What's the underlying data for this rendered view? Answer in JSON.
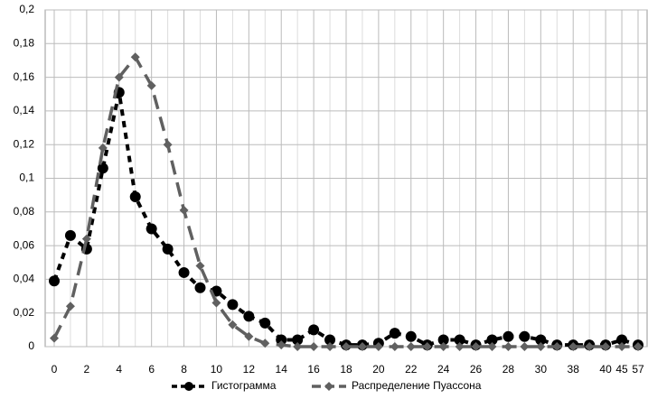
{
  "chart_data": {
    "type": "line",
    "categories": [
      "0",
      null,
      "2",
      null,
      "4",
      null,
      "6",
      null,
      "8",
      null,
      "10",
      null,
      "12",
      null,
      "14",
      null,
      "16",
      null,
      "18",
      null,
      "20",
      null,
      "22",
      null,
      "24",
      null,
      "26",
      null,
      "28",
      null,
      "30",
      null,
      "38",
      null,
      "40",
      "45",
      "57"
    ],
    "series": [
      {
        "name": "Гистограмма",
        "color": "#000000",
        "marker": "circle",
        "values": [
          0.039,
          0.066,
          0.058,
          0.106,
          0.151,
          0.089,
          0.07,
          0.058,
          0.044,
          0.035,
          0.033,
          0.025,
          0.018,
          0.014,
          0.004,
          0.004,
          0.01,
          0.004,
          0.001,
          0.001,
          0.002,
          0.008,
          0.006,
          0.001,
          0.004,
          0.004,
          0.001,
          0.004,
          0.006,
          0.006,
          0.004,
          0.001,
          0.001,
          0.001,
          0.001,
          0.004,
          0.001
        ]
      },
      {
        "name": "Распределение Пуассона",
        "color": "#606060",
        "marker": "diamond",
        "values": [
          0.005,
          0.024,
          0.064,
          0.118,
          0.16,
          0.172,
          0.155,
          0.12,
          0.081,
          0.048,
          0.026,
          0.013,
          0.006,
          0.002,
          0.001,
          0,
          0,
          0,
          0,
          0,
          0,
          0,
          0,
          0,
          0,
          0,
          0,
          0,
          0,
          0,
          0,
          0,
          0,
          0,
          0,
          0,
          0
        ]
      }
    ],
    "ylim": [
      0,
      0.2
    ],
    "yticks": [
      0,
      {
        "value": 0.02,
        "label": "0,02"
      },
      {
        "value": 0.04,
        "label": "0,04"
      },
      {
        "value": 0.06,
        "label": "0,06"
      },
      {
        "value": 0.08,
        "label": "0,08"
      },
      {
        "value": 0.1,
        "label": "0,1"
      },
      {
        "value": 0.12,
        "label": "0,12"
      },
      {
        "value": 0.14,
        "label": "0,14"
      },
      {
        "value": 0.16,
        "label": "0,16"
      },
      {
        "value": 0.18,
        "label": "0,18"
      },
      {
        "value": 0.2,
        "label": "0,2"
      }
    ],
    "grid": true,
    "legend": "bottom"
  }
}
